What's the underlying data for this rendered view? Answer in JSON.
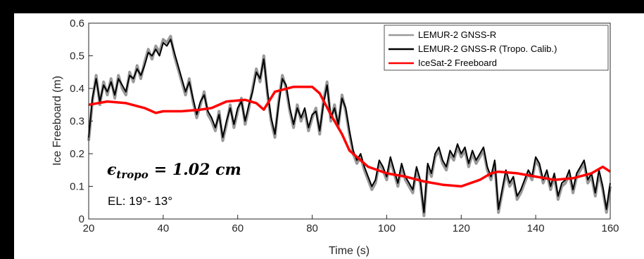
{
  "chart_data": {
    "type": "line",
    "xlabel": "Time (s)",
    "ylabel": "Ice Freeboard (m)",
    "xlim": [
      20,
      160
    ],
    "ylim": [
      0,
      0.6
    ],
    "xticks": [
      "20",
      "40",
      "60",
      "80",
      "100",
      "120",
      "140",
      "160"
    ],
    "yticks": [
      "0",
      "0.1",
      "0.2",
      "0.3",
      "0.4",
      "0.5",
      "0.6"
    ],
    "grid": false,
    "legend_position": "top-right",
    "annotation_math": "ϵ",
    "annotation_sub": "tropo",
    "annotation_value": "= 1.02 cm",
    "annotation_elevation": "EL: 19°- 13°",
    "series": [
      {
        "name": "LEMUR-2 GNSS-R",
        "color": "#999999",
        "x": [
          20,
          21,
          22,
          23,
          24,
          25,
          26,
          27,
          28,
          29,
          30,
          31,
          32,
          33,
          34,
          35,
          36,
          37,
          38,
          39,
          40,
          41,
          42,
          43,
          44,
          45,
          46,
          47,
          48,
          49,
          50,
          51,
          52,
          53,
          54,
          55,
          56,
          57,
          58,
          59,
          60,
          61,
          62,
          63,
          64,
          65,
          66,
          67,
          68,
          69,
          70,
          71,
          72,
          73,
          74,
          75,
          76,
          77,
          78,
          79,
          80,
          81,
          82,
          83,
          84,
          85,
          86,
          87,
          88,
          89,
          90,
          91,
          92,
          93,
          94,
          95,
          96,
          97,
          98,
          99,
          100,
          101,
          102,
          103,
          104,
          105,
          106,
          107,
          108,
          109,
          110,
          111,
          112,
          113,
          114,
          115,
          116,
          117,
          118,
          119,
          120,
          121,
          122,
          123,
          124,
          125,
          126,
          127,
          128,
          129,
          130,
          131,
          132,
          133,
          134,
          135,
          136,
          137,
          138,
          139,
          140,
          141,
          142,
          143,
          144,
          145,
          146,
          147,
          148,
          149,
          150,
          151,
          152,
          153,
          154,
          155,
          156,
          157,
          158,
          159,
          160
        ],
        "y": [
          0.24,
          0.36,
          0.44,
          0.35,
          0.42,
          0.38,
          0.43,
          0.37,
          0.44,
          0.4,
          0.38,
          0.45,
          0.42,
          0.47,
          0.43,
          0.48,
          0.52,
          0.49,
          0.53,
          0.51,
          0.55,
          0.54,
          0.56,
          0.5,
          0.46,
          0.42,
          0.38,
          0.43,
          0.36,
          0.31,
          0.35,
          0.39,
          0.32,
          0.3,
          0.27,
          0.33,
          0.24,
          0.29,
          0.35,
          0.28,
          0.33,
          0.37,
          0.29,
          0.34,
          0.4,
          0.46,
          0.42,
          0.5,
          0.38,
          0.3,
          0.25,
          0.36,
          0.44,
          0.4,
          0.33,
          0.28,
          0.35,
          0.3,
          0.33,
          0.27,
          0.31,
          0.34,
          0.26,
          0.36,
          0.42,
          0.3,
          0.35,
          0.28,
          0.38,
          0.33,
          0.26,
          0.2,
          0.17,
          0.19,
          0.15,
          0.12,
          0.09,
          0.11,
          0.17,
          0.15,
          0.12,
          0.18,
          0.14,
          0.1,
          0.16,
          0.12,
          0.1,
          0.08,
          0.15,
          0.11,
          0.01,
          0.16,
          0.13,
          0.19,
          0.21,
          0.17,
          0.15,
          0.2,
          0.18,
          0.22,
          0.19,
          0.21,
          0.16,
          0.2,
          0.17,
          0.19,
          0.21,
          0.15,
          0.12,
          0.17,
          0.02,
          0.08,
          0.14,
          0.1,
          0.12,
          0.06,
          0.08,
          0.11,
          0.14,
          0.12,
          0.18,
          0.16,
          0.11,
          0.14,
          0.09,
          0.13,
          0.06,
          0.1,
          0.11,
          0.14,
          0.08,
          0.13,
          0.15,
          0.17,
          0.11,
          0.13,
          0.07,
          0.14,
          0.09,
          0.02,
          0.1
        ]
      },
      {
        "name": "LEMUR-2 GNSS-R (Tropo. Calib.)",
        "color": "#000000",
        "x": [
          20,
          21,
          22,
          23,
          24,
          25,
          26,
          27,
          28,
          29,
          30,
          31,
          32,
          33,
          34,
          35,
          36,
          37,
          38,
          39,
          40,
          41,
          42,
          43,
          44,
          45,
          46,
          47,
          48,
          49,
          50,
          51,
          52,
          53,
          54,
          55,
          56,
          57,
          58,
          59,
          60,
          61,
          62,
          63,
          64,
          65,
          66,
          67,
          68,
          69,
          70,
          71,
          72,
          73,
          74,
          75,
          76,
          77,
          78,
          79,
          80,
          81,
          82,
          83,
          84,
          85,
          86,
          87,
          88,
          89,
          90,
          91,
          92,
          93,
          94,
          95,
          96,
          97,
          98,
          99,
          100,
          101,
          102,
          103,
          104,
          105,
          106,
          107,
          108,
          109,
          110,
          111,
          112,
          113,
          114,
          115,
          116,
          117,
          118,
          119,
          120,
          121,
          122,
          123,
          124,
          125,
          126,
          127,
          128,
          129,
          130,
          131,
          132,
          133,
          134,
          135,
          136,
          137,
          138,
          139,
          140,
          141,
          142,
          143,
          144,
          145,
          146,
          147,
          148,
          149,
          150,
          151,
          152,
          153,
          154,
          155,
          156,
          157,
          158,
          159,
          160
        ],
        "y": [
          0.25,
          0.37,
          0.43,
          0.36,
          0.41,
          0.39,
          0.42,
          0.38,
          0.43,
          0.41,
          0.39,
          0.44,
          0.43,
          0.46,
          0.44,
          0.47,
          0.51,
          0.5,
          0.52,
          0.5,
          0.54,
          0.53,
          0.55,
          0.51,
          0.47,
          0.43,
          0.39,
          0.42,
          0.37,
          0.32,
          0.36,
          0.38,
          0.33,
          0.31,
          0.28,
          0.32,
          0.25,
          0.3,
          0.34,
          0.29,
          0.34,
          0.36,
          0.3,
          0.35,
          0.39,
          0.45,
          0.43,
          0.49,
          0.39,
          0.31,
          0.26,
          0.35,
          0.43,
          0.41,
          0.34,
          0.29,
          0.34,
          0.31,
          0.34,
          0.28,
          0.32,
          0.33,
          0.27,
          0.35,
          0.41,
          0.31,
          0.34,
          0.29,
          0.37,
          0.34,
          0.27,
          0.21,
          0.18,
          0.2,
          0.16,
          0.13,
          0.1,
          0.12,
          0.18,
          0.16,
          0.13,
          0.19,
          0.15,
          0.11,
          0.17,
          0.13,
          0.11,
          0.09,
          0.16,
          0.12,
          0.02,
          0.17,
          0.14,
          0.2,
          0.22,
          0.18,
          0.16,
          0.21,
          0.19,
          0.23,
          0.2,
          0.22,
          0.17,
          0.21,
          0.18,
          0.2,
          0.22,
          0.16,
          0.13,
          0.18,
          0.03,
          0.09,
          0.15,
          0.11,
          0.13,
          0.07,
          0.09,
          0.12,
          0.15,
          0.13,
          0.19,
          0.17,
          0.12,
          0.15,
          0.1,
          0.14,
          0.07,
          0.11,
          0.12,
          0.15,
          0.09,
          0.14,
          0.16,
          0.18,
          0.12,
          0.14,
          0.08,
          0.15,
          0.1,
          0.03,
          0.11
        ]
      },
      {
        "name": "IceSat-2 Freeboard",
        "color": "#ff0000",
        "x": [
          20,
          25,
          30,
          35,
          38,
          40,
          45,
          50,
          53,
          57,
          62,
          65,
          67,
          70,
          75,
          80,
          82,
          85,
          88,
          90,
          95,
          100,
          105,
          110,
          115,
          120,
          125,
          128,
          130,
          135,
          140,
          145,
          150,
          155,
          158,
          160
        ],
        "y": [
          0.35,
          0.36,
          0.355,
          0.34,
          0.325,
          0.33,
          0.33,
          0.335,
          0.34,
          0.36,
          0.365,
          0.355,
          0.335,
          0.39,
          0.405,
          0.405,
          0.385,
          0.32,
          0.26,
          0.21,
          0.16,
          0.14,
          0.13,
          0.115,
          0.105,
          0.1,
          0.12,
          0.14,
          0.145,
          0.14,
          0.13,
          0.12,
          0.125,
          0.14,
          0.16,
          0.145
        ]
      }
    ]
  }
}
